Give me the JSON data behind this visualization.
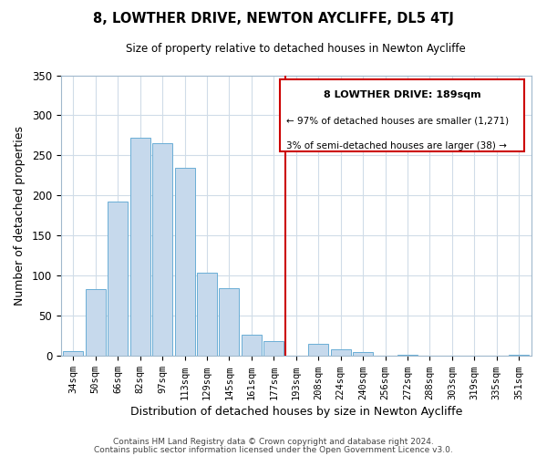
{
  "title": "8, LOWTHER DRIVE, NEWTON AYCLIFFE, DL5 4TJ",
  "subtitle": "Size of property relative to detached houses in Newton Aycliffe",
  "xlabel": "Distribution of detached houses by size in Newton Aycliffe",
  "ylabel": "Number of detached properties",
  "bar_labels": [
    "34sqm",
    "50sqm",
    "66sqm",
    "82sqm",
    "97sqm",
    "113sqm",
    "129sqm",
    "145sqm",
    "161sqm",
    "177sqm",
    "193sqm",
    "208sqm",
    "224sqm",
    "240sqm",
    "256sqm",
    "272sqm",
    "288sqm",
    "303sqm",
    "319sqm",
    "335sqm",
    "351sqm"
  ],
  "bar_heights": [
    6,
    83,
    193,
    272,
    265,
    235,
    104,
    85,
    27,
    19,
    0,
    15,
    8,
    5,
    0,
    2,
    0,
    0,
    0,
    0,
    1
  ],
  "bar_color": "#c6d9ec",
  "bar_edge_color": "#6aaed6",
  "vline_color": "#cc0000",
  "annotation_title": "8 LOWTHER DRIVE: 189sqm",
  "annotation_line1": "← 97% of detached houses are smaller (1,271)",
  "annotation_line2": "3% of semi-detached houses are larger (38) →",
  "annotation_box_color": "#ffffff",
  "annotation_box_edge": "#cc0000",
  "ylim": [
    0,
    350
  ],
  "yticks": [
    0,
    50,
    100,
    150,
    200,
    250,
    300,
    350
  ],
  "grid_color": "#d0dce8",
  "footer1": "Contains HM Land Registry data © Crown copyright and database right 2024.",
  "footer2": "Contains public sector information licensed under the Open Government Licence v3.0."
}
